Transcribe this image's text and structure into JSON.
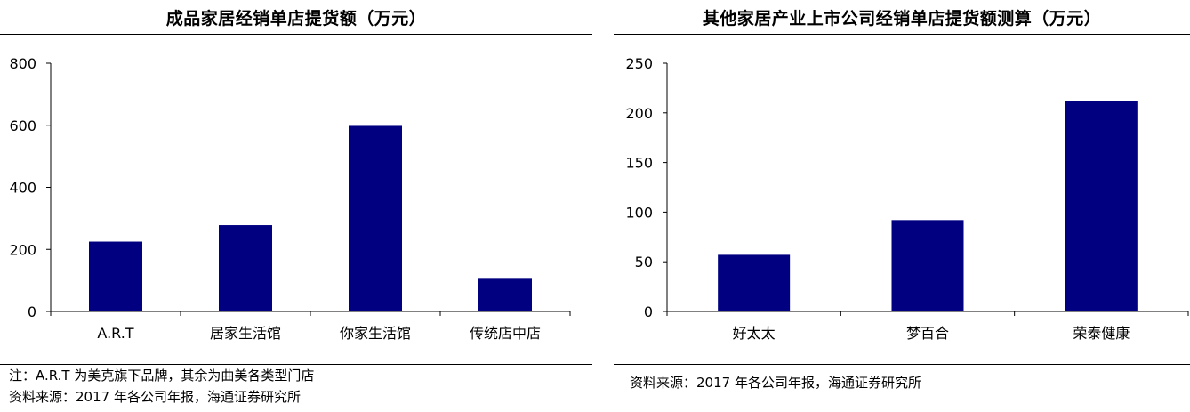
{
  "chart_data": [
    {
      "type": "bar",
      "title": "成品家居经销单店提货额（万元）",
      "categories": [
        "A.R.T",
        "居家生活馆",
        "你家生活馆",
        "传统店中店"
      ],
      "values": [
        225,
        278,
        598,
        108
      ],
      "ylim": [
        0,
        800
      ],
      "yticks": [
        0,
        200,
        400,
        600,
        800
      ],
      "xlabel": "",
      "ylabel": "",
      "grid": false,
      "color": "#000080"
    },
    {
      "type": "bar",
      "title": "其他家居产业上市公司经销单店提货额测算（万元）",
      "categories": [
        "好太太",
        "梦百合",
        "荣泰健康"
      ],
      "values": [
        57,
        92,
        212
      ],
      "ylim": [
        0,
        250
      ],
      "yticks": [
        0,
        50,
        100,
        150,
        200,
        250
      ],
      "xlabel": "",
      "ylabel": "",
      "grid": false,
      "color": "#000080"
    }
  ],
  "notes": {
    "left_note": "注：A.R.T 为美克旗下品牌，其余为曲美各类型门店",
    "left_source": "资料来源：2017 年各公司年报，海通证券研究所",
    "right_source": "资料来源：2017 年各公司年报，海通证券研究所"
  }
}
